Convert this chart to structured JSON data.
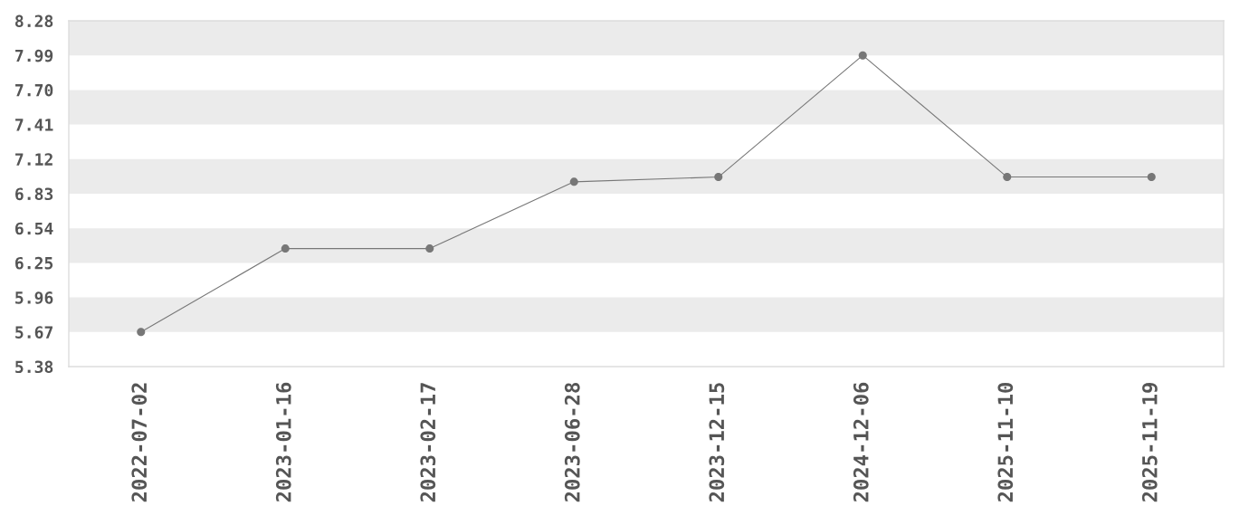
{
  "chart_data": {
    "type": "line",
    "categories": [
      "2022-07-02",
      "2023-01-16",
      "2023-02-17",
      "2023-06-28",
      "2023-12-15",
      "2024-12-06",
      "2025-11-10",
      "2025-11-19"
    ],
    "series": [
      {
        "color": "#777777",
        "values": [
          5.67,
          6.37,
          6.37,
          6.93,
          6.97,
          7.99,
          6.97,
          6.97
        ]
      }
    ],
    "ylim": [
      5.38,
      8.28
    ],
    "yticks": [
      5.38,
      5.67,
      5.96,
      6.25,
      6.54,
      6.83,
      7.12,
      7.41,
      {
        "value": 7.7,
        "label": "7.70"
      },
      7.99,
      8.28
    ],
    "bands": [
      {
        "axis": "y",
        "from": 7.99,
        "to": 8.28,
        "color": "#ebebeb"
      },
      {
        "axis": "y",
        "from": 7.41,
        "to": 7.7,
        "color": "#ebebeb"
      },
      {
        "axis": "y",
        "from": 6.83,
        "to": 7.12,
        "color": "#ebebeb"
      },
      {
        "axis": "y",
        "from": 6.25,
        "to": 6.54,
        "color": "#ebebeb"
      },
      {
        "axis": "y",
        "from": 5.67,
        "to": 5.96,
        "color": "#ebebeb"
      }
    ],
    "marker": "circle",
    "line_style": "solid"
  }
}
